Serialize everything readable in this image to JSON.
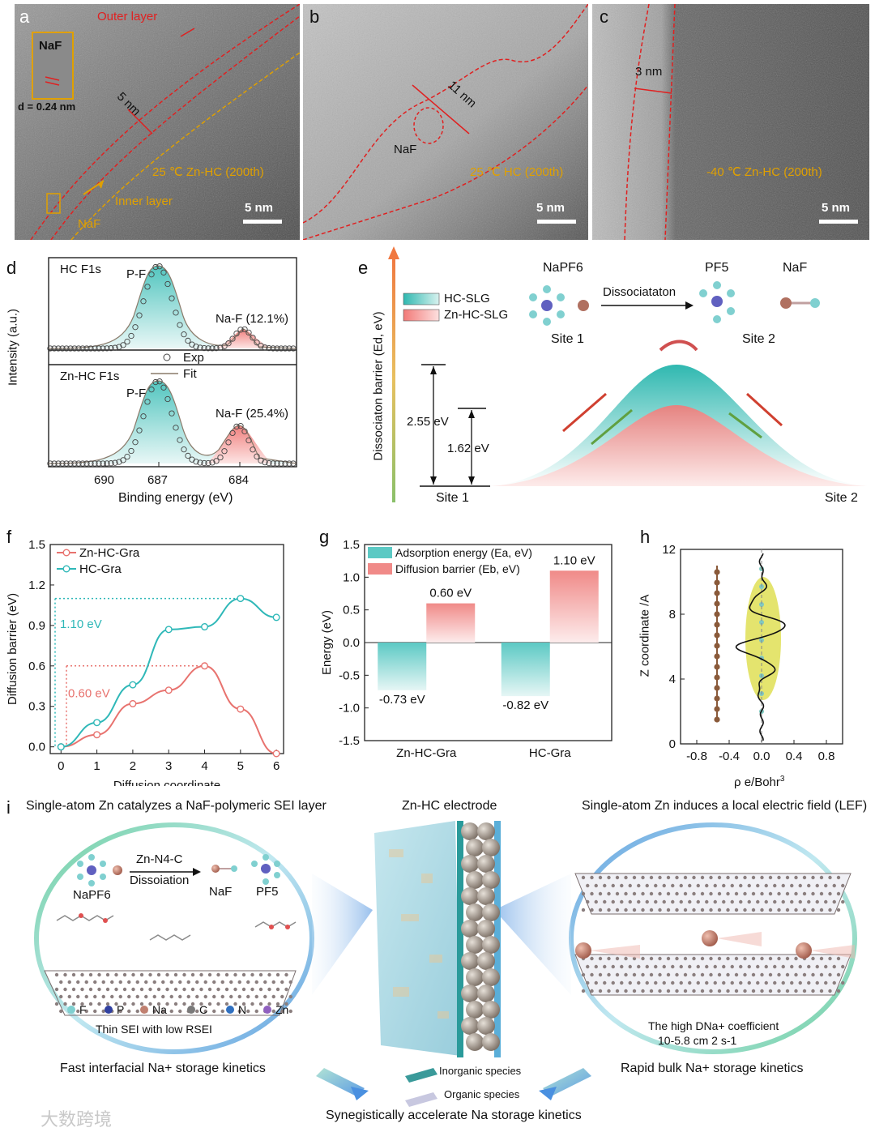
{
  "panels": {
    "a": {
      "letter": "a",
      "outer_layer": "Outer layer",
      "inset_label": "NaF",
      "d_spacing": "d = 0.24 nm",
      "thickness": "5 nm",
      "condition": "25 ℃ Zn-HC (200th)",
      "inner_layer": "Inner layer",
      "naf": "NaF",
      "scale": "5 nm"
    },
    "b": {
      "letter": "b",
      "thickness": "11 nm",
      "naf": "NaF",
      "condition": "25 ℃ HC (200th)",
      "scale": "5 nm"
    },
    "c": {
      "letter": "c",
      "thickness": "3 nm",
      "condition": "-40 ℃ Zn-HC (200th)",
      "scale": "5 nm"
    },
    "d": {
      "letter": "d",
      "ylabel": "Intensity (a.u.)",
      "xlabel": "Binding energy (eV)",
      "top_title": "HC F1s",
      "bottom_title": "Zn-HC F1s",
      "pf": "P-F",
      "naf_top": "Na-F (12.1%)",
      "naf_bottom": "Na-F (25.4%)",
      "legend_exp": "Exp",
      "legend_fit": "Fit",
      "ticks": [
        "690",
        "687",
        "684"
      ]
    },
    "e": {
      "letter": "e",
      "ylabel": "Dissociaton barrier (Ed, eV)",
      "legend1": "HC-SLG",
      "legend2": "Zn-HC-SLG",
      "napf6": "NaPF6",
      "pf5": "PF5",
      "naf": "NaF",
      "arrow_label": "Dissociataton",
      "site1": "Site 1",
      "site2": "Site 2",
      "barrier1": "2.55 eV",
      "barrier2": "1.62 eV"
    },
    "f": {
      "letter": "f",
      "legend1": "Zn-HC-Gra",
      "legend2": "HC-Gra",
      "ann1": "1.10 eV",
      "ann2": "0.60 eV"
    },
    "g": {
      "letter": "g",
      "legend1": "Adsorption energy (Ea, eV)",
      "legend2": "Diffusion barrier (Eb, eV)"
    },
    "h": {
      "letter": "h",
      "ylabel": "Z coordinate /A",
      "xlabel": "ρ e/Bohr3"
    },
    "i": {
      "letter": "i",
      "title_left": "Single-atom Zn catalyzes a NaF-polymeric SEI layer",
      "title_mid": "Zn-HC electrode",
      "title_right": "Single-atom Zn induces a local electric field (LEF)",
      "napf6": "NaPF6",
      "znn4c": "Zn-N4-C",
      "dissoiation": "Dissoiation",
      "naf": "NaF",
      "pf5": "PF5",
      "elements": [
        "F",
        "P",
        "Na",
        "C",
        "N",
        "Zn"
      ],
      "thin_sei": "Thin SEI with low RSEI",
      "high_d": "The high DNa+ coefficient",
      "coef": "10-5.8 cm 2 s-1",
      "fast": "Fast interfacial Na+ storage kinetics",
      "rapid": "Rapid bulk Na+ storage kinetics",
      "inorganic": "Inorganic species",
      "organic": "Organic species",
      "synergy": "Synegistically accelerate Na storage kinetics",
      "watermark": "大数跨境"
    }
  },
  "chart_data": [
    {
      "type": "line",
      "panel": "f",
      "xlabel": "Diffusion coordinate",
      "ylabel": "Diffusion barrier (eV)",
      "xlim": [
        -0.3,
        6.2
      ],
      "ylim": [
        -0.05,
        1.5
      ],
      "xticks": [
        "0",
        "1",
        "2",
        "3",
        "4",
        "5",
        "6"
      ],
      "yticks": [
        "0.0",
        "0.3",
        "0.6",
        "0.9",
        "1.2",
        "1.5"
      ],
      "series": [
        {
          "name": "Zn-HC-Gra",
          "color": "#e8736f",
          "x": [
            0,
            1,
            2,
            3,
            4,
            5,
            6
          ],
          "y": [
            0.0,
            0.09,
            0.32,
            0.42,
            0.6,
            0.28,
            -0.05
          ]
        },
        {
          "name": "HC-Gra",
          "color": "#2fb8b8",
          "x": [
            0,
            1,
            2,
            3,
            4,
            5,
            6
          ],
          "y": [
            0.0,
            0.18,
            0.46,
            0.87,
            0.89,
            1.1,
            0.96
          ]
        }
      ]
    },
    {
      "type": "bar",
      "panel": "g",
      "ylabel": "Energy (eV)",
      "categories": [
        "Zn-HC-Gra",
        "HC-Gra"
      ],
      "ylim": [
        -1.5,
        1.5
      ],
      "yticks": [
        "-1.5",
        "-1.0",
        "-0.5",
        "0.0",
        "0.5",
        "1.0",
        "1.5"
      ],
      "series": [
        {
          "name": "Adsorption energy (Ea, eV)",
          "values": [
            -0.73,
            -0.82
          ],
          "labels": [
            "-0.73 eV",
            "-0.82 eV"
          ],
          "color": "#5cc9c4"
        },
        {
          "name": "Diffusion barrier (Eb, eV)",
          "values": [
            0.6,
            1.1
          ],
          "labels": [
            "0.60 eV",
            "1.10 eV"
          ],
          "color": "#f08a88"
        }
      ]
    },
    {
      "type": "line",
      "panel": "h",
      "xticks": [
        "-0.8",
        "-0.4",
        "0.0",
        "0.4",
        "0.8"
      ],
      "yticks": [
        "0",
        "4",
        "8",
        "12"
      ],
      "xlim": [
        -1.0,
        1.0
      ],
      "ylim": [
        0,
        12
      ]
    }
  ]
}
